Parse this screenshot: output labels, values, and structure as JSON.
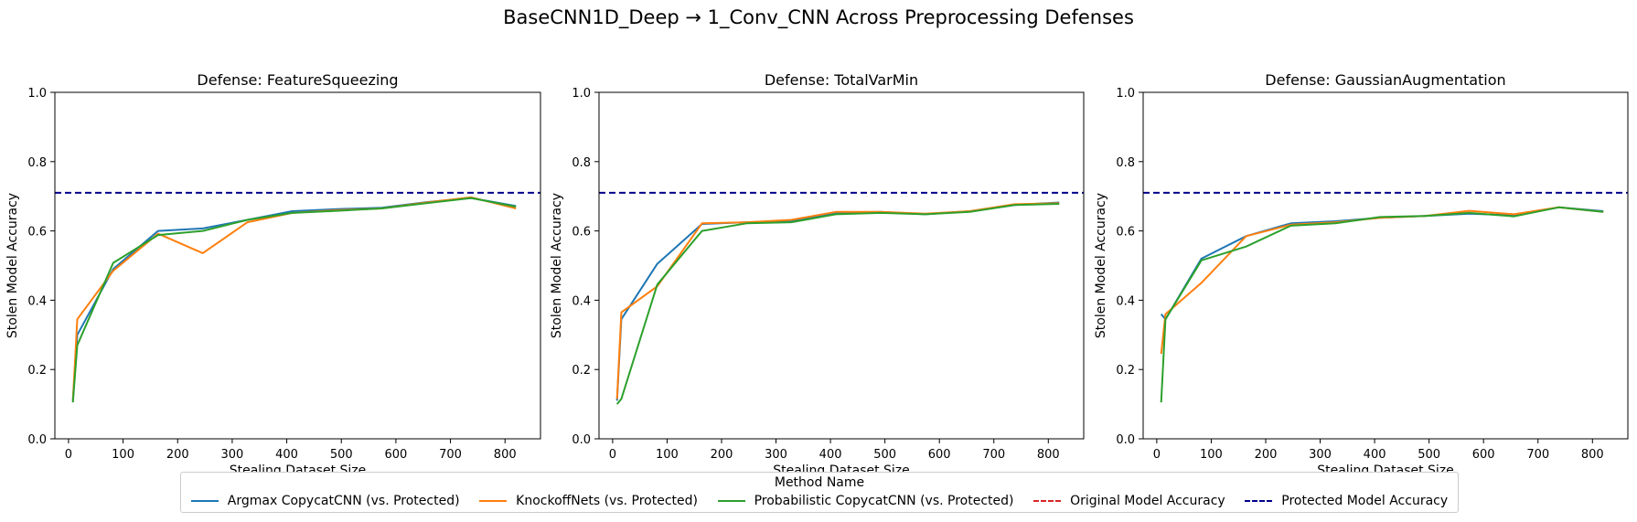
{
  "figure": {
    "title": "BaseCNN1D_Deep → 1_Conv_CNN Across Preprocessing Defenses"
  },
  "legend": {
    "title": "Method Name",
    "items": [
      {
        "label": "Argmax CopycatCNN (vs. Protected)",
        "color": "#1f77b4",
        "style": "solid"
      },
      {
        "label": "KnockoffNets (vs. Protected)",
        "color": "#ff7f0e",
        "style": "solid"
      },
      {
        "label": "Probabilistic CopycatCNN (vs. Protected)",
        "color": "#2ca02c",
        "style": "solid"
      },
      {
        "label": "Original Model Accuracy",
        "color": "#d62728",
        "style": "dashed"
      },
      {
        "label": "Protected Model Accuracy",
        "color": "#00008b",
        "style": "dashed"
      }
    ]
  },
  "chart_data": [
    {
      "type": "line",
      "title": "Defense: FeatureSqueezing",
      "xlabel": "Stealing Dataset Size",
      "ylabel": "Stolen Model Accuracy",
      "xlim": [
        -25,
        865
      ],
      "ylim": [
        0,
        1.0
      ],
      "xticks": [
        0,
        100,
        200,
        300,
        400,
        500,
        600,
        700,
        800
      ],
      "yticks": [
        0.0,
        0.2,
        0.4,
        0.6,
        0.8,
        1.0
      ],
      "hlines": [
        {
          "name": "Protected Model Accuracy",
          "y": 0.71,
          "color": "#00008b"
        }
      ],
      "series": [
        {
          "name": "Argmax CopycatCNN (vs. Protected)",
          "color": "#1f77b4",
          "x": [
            8,
            16,
            82,
            164,
            246,
            328,
            410,
            492,
            574,
            656,
            738,
            820
          ],
          "y": [
            0.11,
            0.3,
            0.49,
            0.6,
            0.607,
            0.632,
            0.657,
            0.663,
            0.667,
            0.683,
            0.695,
            0.672
          ]
        },
        {
          "name": "KnockoffNets (vs. Protected)",
          "color": "#ff7f0e",
          "x": [
            8,
            16,
            82,
            164,
            246,
            328,
            410,
            492,
            574,
            656,
            738,
            820
          ],
          "y": [
            0.11,
            0.345,
            0.485,
            0.592,
            0.536,
            0.625,
            0.652,
            0.66,
            0.665,
            0.682,
            0.697,
            0.665
          ]
        },
        {
          "name": "Probabilistic CopycatCNN (vs. Protected)",
          "color": "#2ca02c",
          "x": [
            8,
            16,
            82,
            164,
            246,
            328,
            410,
            492,
            574,
            656,
            738,
            820
          ],
          "y": [
            0.105,
            0.27,
            0.508,
            0.588,
            0.6,
            0.632,
            0.652,
            0.658,
            0.665,
            0.68,
            0.695,
            0.67
          ]
        }
      ]
    },
    {
      "type": "line",
      "title": "Defense: TotalVarMin",
      "xlabel": "Stealing Dataset Size",
      "ylabel": "Stolen Model Accuracy",
      "xlim": [
        -25,
        865
      ],
      "ylim": [
        0,
        1.0
      ],
      "xticks": [
        0,
        100,
        200,
        300,
        400,
        500,
        600,
        700,
        800
      ],
      "yticks": [
        0.0,
        0.2,
        0.4,
        0.6,
        0.8,
        1.0
      ],
      "hlines": [
        {
          "name": "Protected Model Accuracy",
          "y": 0.71,
          "color": "#00008b"
        }
      ],
      "series": [
        {
          "name": "Argmax CopycatCNN (vs. Protected)",
          "color": "#1f77b4",
          "x": [
            8,
            16,
            82,
            164,
            246,
            328,
            410,
            492,
            574,
            656,
            738,
            820
          ],
          "y": [
            0.11,
            0.345,
            0.505,
            0.62,
            0.625,
            0.628,
            0.652,
            0.655,
            0.648,
            0.657,
            0.675,
            0.682
          ]
        },
        {
          "name": "KnockoffNets (vs. Protected)",
          "color": "#ff7f0e",
          "x": [
            8,
            16,
            82,
            164,
            246,
            328,
            410,
            492,
            574,
            656,
            738,
            820
          ],
          "y": [
            0.115,
            0.365,
            0.44,
            0.622,
            0.625,
            0.632,
            0.655,
            0.655,
            0.65,
            0.657,
            0.677,
            0.68
          ]
        },
        {
          "name": "Probabilistic CopycatCNN (vs. Protected)",
          "color": "#2ca02c",
          "x": [
            8,
            16,
            82,
            164,
            246,
            328,
            410,
            492,
            574,
            656,
            738,
            820
          ],
          "y": [
            0.1,
            0.115,
            0.445,
            0.6,
            0.622,
            0.625,
            0.648,
            0.652,
            0.648,
            0.655,
            0.675,
            0.678
          ]
        }
      ]
    },
    {
      "type": "line",
      "title": "Defense: GaussianAugmentation",
      "xlabel": "Stealing Dataset Size",
      "ylabel": "Stolen Model Accuracy",
      "xlim": [
        -25,
        865
      ],
      "ylim": [
        0,
        1.0
      ],
      "xticks": [
        0,
        100,
        200,
        300,
        400,
        500,
        600,
        700,
        800
      ],
      "yticks": [
        0.0,
        0.2,
        0.4,
        0.6,
        0.8,
        1.0
      ],
      "hlines": [
        {
          "name": "Protected Model Accuracy",
          "y": 0.71,
          "color": "#00008b"
        }
      ],
      "series": [
        {
          "name": "Argmax CopycatCNN (vs. Protected)",
          "color": "#1f77b4",
          "x": [
            8,
            16,
            82,
            164,
            246,
            328,
            410,
            492,
            574,
            656,
            738,
            820
          ],
          "y": [
            0.36,
            0.345,
            0.52,
            0.585,
            0.622,
            0.628,
            0.638,
            0.643,
            0.65,
            0.645,
            0.668,
            0.657
          ]
        },
        {
          "name": "KnockoffNets (vs. Protected)",
          "color": "#ff7f0e",
          "x": [
            8,
            16,
            82,
            164,
            246,
            328,
            410,
            492,
            574,
            656,
            738,
            820
          ],
          "y": [
            0.245,
            0.36,
            0.45,
            0.585,
            0.618,
            0.625,
            0.638,
            0.643,
            0.658,
            0.648,
            0.668,
            0.655
          ]
        },
        {
          "name": "Probabilistic CopycatCNN (vs. Protected)",
          "color": "#2ca02c",
          "x": [
            8,
            16,
            82,
            164,
            246,
            328,
            410,
            492,
            574,
            656,
            738,
            820
          ],
          "y": [
            0.105,
            0.345,
            0.515,
            0.555,
            0.615,
            0.622,
            0.64,
            0.643,
            0.652,
            0.642,
            0.668,
            0.655
          ]
        }
      ]
    }
  ]
}
